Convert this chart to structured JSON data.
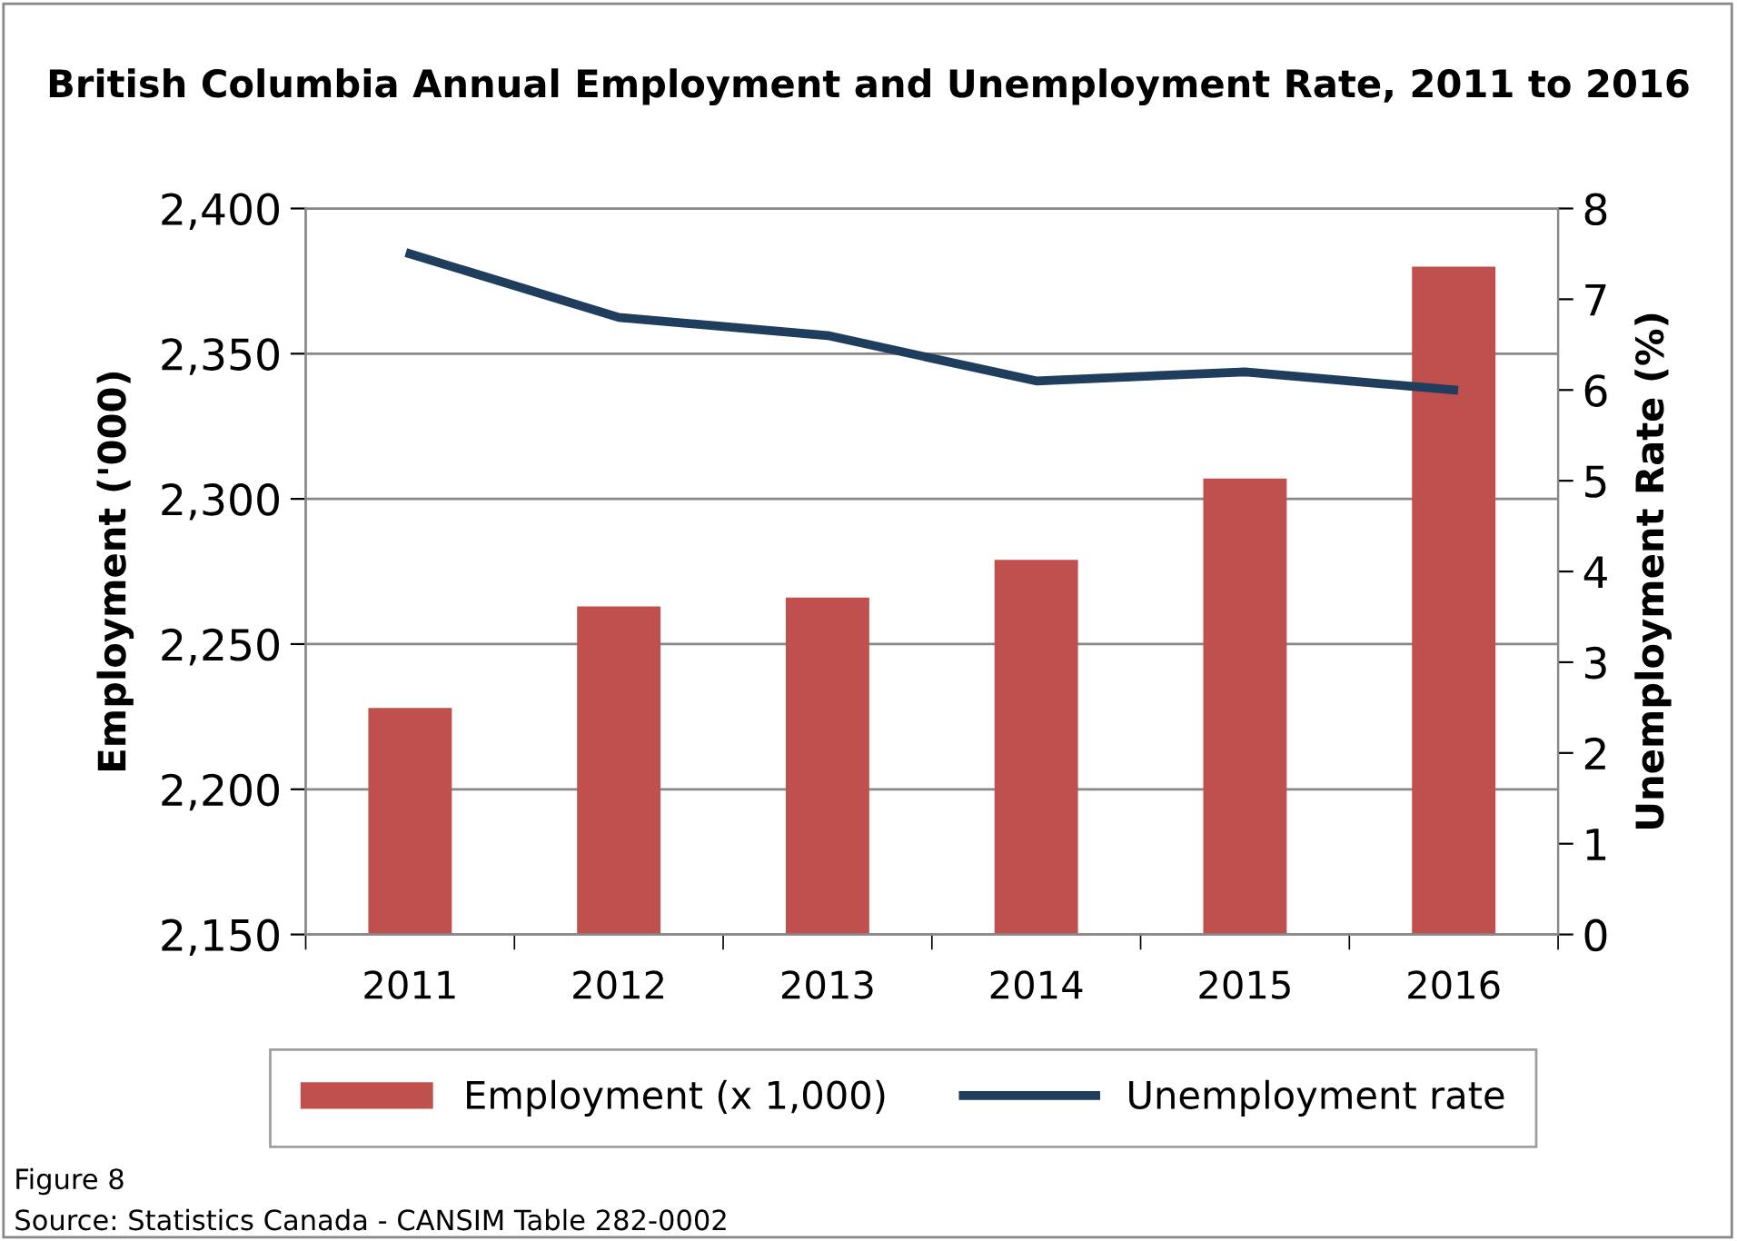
{
  "chart_data": {
    "type": "bar",
    "title": "British Columbia Annual Employment and Unemployment Rate, 2011 to 2016",
    "categories": [
      "2011",
      "2012",
      "2013",
      "2014",
      "2015",
      "2016"
    ],
    "series": [
      {
        "name": "Employment (x 1,000)",
        "color": "#c0504d",
        "values": [
          2228,
          2263,
          2266,
          2279,
          2307,
          2380
        ]
      },
      {
        "name": "Unemployment rate",
        "type": "line",
        "axis": "y2",
        "color": "#1f3d5c",
        "values": [
          7.5,
          6.8,
          6.6,
          6.1,
          6.2,
          6.0
        ]
      }
    ],
    "ylabel": "Employment ('000)",
    "y2label": "Unemployment Rate (%)",
    "ylim": [
      2150,
      2400
    ],
    "yticks": [
      {
        "value": 2150,
        "label": "2,150"
      },
      {
        "value": 2200,
        "label": "2,200"
      },
      {
        "value": 2250,
        "label": "2,250"
      },
      {
        "value": 2300,
        "label": "2,300"
      },
      {
        "value": 2350,
        "label": "2,350"
      },
      {
        "value": 2400,
        "label": "2,400"
      }
    ],
    "y2lim": [
      0,
      8
    ],
    "y2ticks": [
      0,
      1,
      2,
      3,
      4,
      5,
      6,
      7,
      8
    ],
    "grid": "y",
    "legend": "bottom",
    "marker": "none",
    "line_style": "solid",
    "annotations": [
      "Figure 8",
      "Source: Statistics Canada - CANSIM Table 282-0002"
    ]
  }
}
